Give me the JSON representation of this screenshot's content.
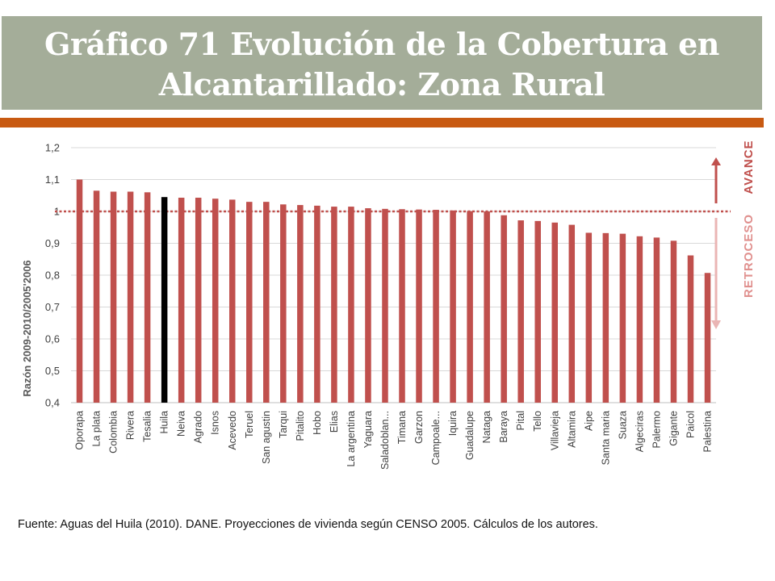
{
  "slide": {
    "title_line1": "Gráfico 71 Evolución de la Cobertura en",
    "title_line2": "Alcantarillado: Zona Rural",
    "source": "Fuente: Aguas del Huila (2010). DANE. Proyecciones de vivienda según CENSO 2005. Cálculos de los autores."
  },
  "colors": {
    "title_band": "#a4ad99",
    "accent_bar": "#c85a12",
    "bar": "#c0504d",
    "highlight_bar": "#000000",
    "reference_line": "#c0504d"
  },
  "chart_data": {
    "type": "bar",
    "title": "",
    "xlabel": "",
    "ylabel": "Razón 2009-2010/2005'2006",
    "ylim": [
      0.4,
      1.2
    ],
    "yticks": [
      0.4,
      0.5,
      0.6,
      0.7,
      0.8,
      0.9,
      1,
      1.1,
      1.2
    ],
    "ytick_labels": [
      "0,4",
      "0,5",
      "0,6",
      "0,7",
      "0,8",
      "0,9",
      "1",
      "1,1",
      "1,2"
    ],
    "grid": true,
    "reference_value": 1,
    "highlight": "Huila",
    "categories": [
      "Oporapa",
      "La plata",
      "Colombia",
      "Rivera",
      "Tesalia",
      "Huila",
      "Neiva",
      "Agrado",
      "Isnos",
      "Acevedo",
      "Teruel",
      "San agustin",
      "Tarqui",
      "Pitalito",
      "Hobo",
      "Elias",
      "La argentina",
      "Yaguara",
      "Saladoblan...",
      "Timana",
      "Garzon",
      "Campoale...",
      "Iquira",
      "Guadalupe",
      "Nataga",
      "Baraya",
      "Pital",
      "Tello",
      "Villavieja",
      "Altamira",
      "Aipe",
      "Santa maria",
      "Suaza",
      "Algeciras",
      "Palermo",
      "Gigante",
      "Paicol",
      "Palestina"
    ],
    "values": [
      1.1,
      1.065,
      1.062,
      1.062,
      1.06,
      1.045,
      1.043,
      1.043,
      1.04,
      1.037,
      1.03,
      1.03,
      1.022,
      1.02,
      1.018,
      1.015,
      1.015,
      1.01,
      1.008,
      1.007,
      1.006,
      1.005,
      1.003,
      1.001,
      1.0,
      0.988,
      0.972,
      0.97,
      0.965,
      0.958,
      0.933,
      0.932,
      0.93,
      0.922,
      0.918,
      0.908,
      0.862,
      0.807
    ],
    "annotations": {
      "advance": "AVANCE",
      "retreat": "RETROCESO"
    }
  }
}
